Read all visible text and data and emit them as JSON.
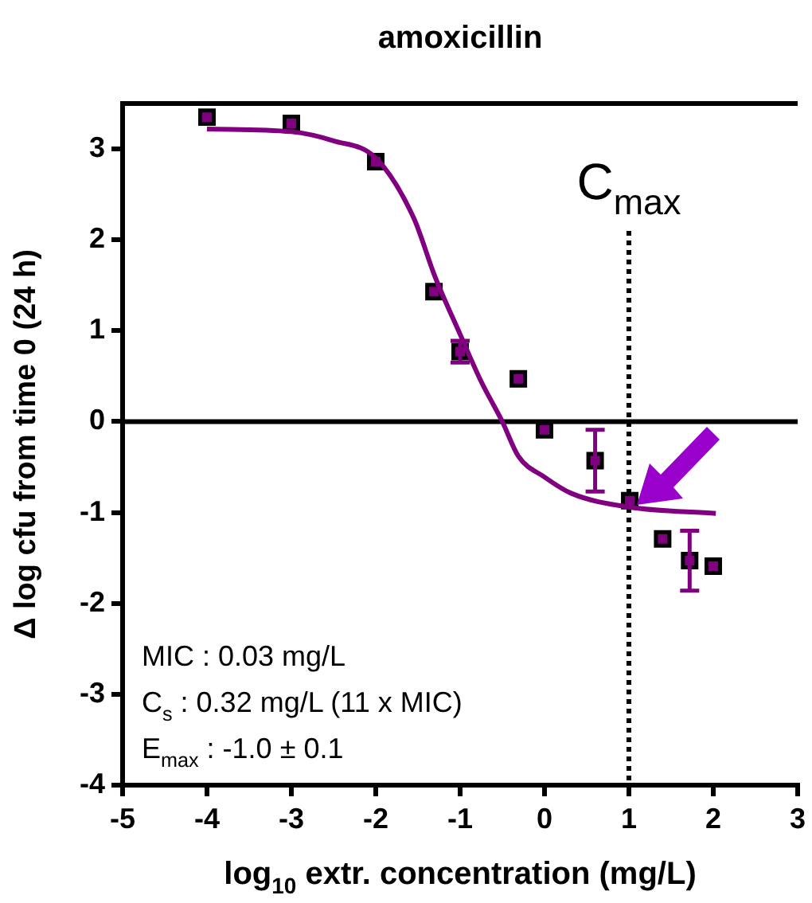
{
  "chart_data": {
    "type": "scatter",
    "title": "amoxicillin",
    "xlabel": "log$_{10}$ extr. concentration (mg/L)",
    "ylabel": "Δ log cfu from time 0 (24 h)",
    "xlim": [
      -5,
      3
    ],
    "xticks": [
      -5,
      -4,
      -3,
      -2,
      -1,
      0,
      1,
      2,
      3
    ],
    "ylim": [
      -4,
      3.5
    ],
    "yticks": [
      -4,
      -3,
      -2,
      -1,
      0,
      1,
      2,
      3
    ],
    "grid": false,
    "legend": false,
    "marker": "square",
    "series": [
      {
        "type": "line",
        "color": "#800080",
        "marker": "none",
        "x": [
          -4,
          -3,
          -2.5,
          -2,
          -1.55,
          -1.3,
          -1,
          -0.75,
          -0.5,
          -0.31,
          0,
          0.32,
          1,
          2.03
        ],
        "values": [
          3.22,
          3.19,
          3.09,
          2.9,
          2.24,
          1.6,
          0.96,
          0.44,
          0,
          -0.38,
          -0.61,
          -0.79,
          -0.94,
          -1.01
        ]
      },
      {
        "color": "#800080",
        "x": [
          -4,
          -3,
          -2,
          -1.31,
          -1,
          -0.31,
          0,
          0.6,
          1.01,
          1.4,
          1.72,
          2
        ],
        "values": [
          3.35,
          3.28,
          2.86,
          1.43,
          0.77,
          0.47,
          -0.09,
          -0.43,
          -0.87,
          -1.29,
          -1.53,
          -1.59
        ],
        "errors": [
          null,
          null,
          null,
          null,
          0.12,
          null,
          null,
          0.34,
          null,
          null,
          0.33,
          null
        ]
      }
    ],
    "ref_lines": [
      {
        "axis": "x",
        "value": 1,
        "label": "C$_{max}$",
        "line_style": "dotted",
        "color": "#000000"
      },
      {
        "axis": "y",
        "value": 0,
        "label": null,
        "line_style": "solid",
        "color": "#000000"
      }
    ],
    "annotations": [
      "MIC : 0.03 mg/L",
      "C$_{s}$ : 0.32 mg/L (11 x MIC)",
      "E$_{max}$ : -1.0 ± 0.1"
    ]
  }
}
